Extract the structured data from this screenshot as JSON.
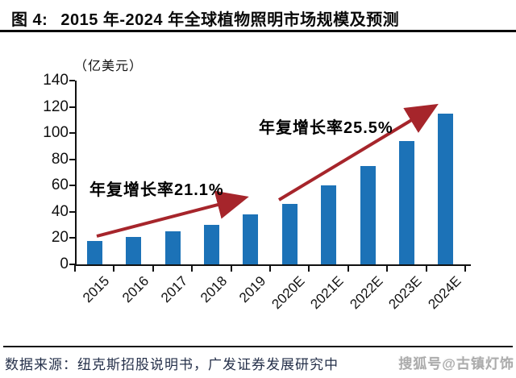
{
  "header": {
    "figure_label": "图 4:",
    "title": "2015 年-2024 年全球植物照明市场规模及预测"
  },
  "chart_data": {
    "type": "bar",
    "title": "2015 年-2024 年全球植物照明市场规模及预测",
    "unit_label": "（亿美元）",
    "categories": [
      "2015",
      "2016",
      "2017",
      "2018",
      "2019",
      "2020E",
      "2021E",
      "2022E",
      "2023E",
      "2024E"
    ],
    "values": [
      18,
      21,
      25,
      30,
      38,
      46,
      60,
      75,
      94,
      115
    ],
    "ylim": [
      0,
      140
    ],
    "yticks": [
      0,
      20,
      40,
      60,
      80,
      100,
      120,
      140
    ],
    "grid": false,
    "legend": null,
    "bar_color": "#1C72B7",
    "arrow_color": "#A6252B",
    "annotations": [
      {
        "text": "年复增长率21.1%"
      },
      {
        "text": "年复增长率25.5%"
      }
    ]
  },
  "footer": {
    "source": "数据来源：纽克斯招股说明书，广发证券发展研究中",
    "watermark": "搜狐号@古镇灯饰"
  }
}
